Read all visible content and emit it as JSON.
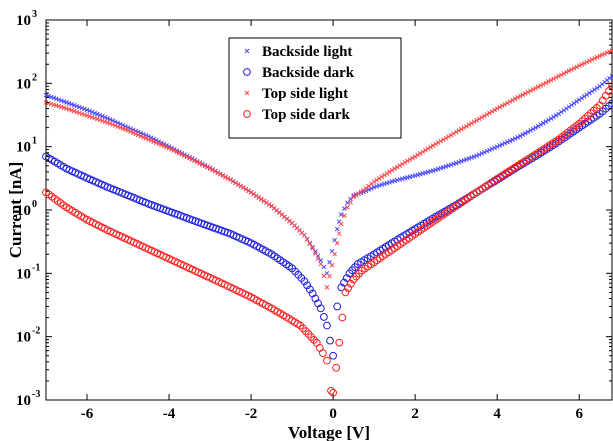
{
  "chart_data": {
    "type": "scatter",
    "title": "",
    "xlabel": "Voltage [V]",
    "ylabel": "Current [nA]",
    "xlim": [
      -7,
      6.8
    ],
    "ylim_log10": [
      -3,
      3
    ],
    "yscale": "log",
    "grid": false,
    "legend_position": "top-center",
    "x_ticks": [
      "-6",
      "-4",
      "-2",
      "0",
      "2",
      "4",
      "6"
    ],
    "y_ticks": [
      {
        "base": "10",
        "exp": "-3"
      },
      {
        "base": "10",
        "exp": "-2"
      },
      {
        "base": "10",
        "exp": "-1"
      },
      {
        "base": "10",
        "exp": "0"
      },
      {
        "base": "10",
        "exp": "1"
      },
      {
        "base": "10",
        "exp": "2"
      },
      {
        "base": "10",
        "exp": "3"
      }
    ],
    "series": [
      {
        "name": "Backside light",
        "marker": "x",
        "color": "#4a4aff",
        "x": [
          -7.0,
          -6.5,
          -6.0,
          -5.5,
          -5.0,
          -4.5,
          -4.0,
          -3.5,
          -3.0,
          -2.5,
          -2.0,
          -1.5,
          -1.0,
          -0.7,
          -0.5,
          -0.3,
          -0.15,
          0.1,
          0.2,
          0.35,
          0.5,
          0.8,
          1.0,
          1.5,
          2.0,
          2.5,
          3.0,
          3.5,
          4.0,
          4.5,
          5.0,
          5.5,
          6.0,
          6.5,
          6.8
        ],
        "y": [
          65,
          50,
          38,
          28,
          20,
          14.5,
          10,
          6.8,
          4.6,
          3.0,
          1.9,
          1.15,
          0.62,
          0.4,
          0.26,
          0.16,
          0.1,
          0.5,
          0.85,
          1.3,
          1.7,
          2.0,
          2.3,
          2.9,
          3.5,
          4.3,
          5.5,
          7.2,
          10,
          14,
          21,
          33,
          55,
          90,
          130
        ]
      },
      {
        "name": "Backside dark",
        "marker": "circle",
        "color": "#1f1fe0",
        "x": [
          -7.0,
          -6.5,
          -6.0,
          -5.5,
          -5.0,
          -4.5,
          -4.0,
          -3.5,
          -3.0,
          -2.5,
          -2.0,
          -1.5,
          -1.0,
          -0.7,
          -0.5,
          -0.3,
          -0.15,
          0.0,
          0.1,
          0.2,
          0.4,
          0.6,
          1.0,
          1.5,
          2.0,
          2.5,
          3.0,
          3.5,
          4.0,
          4.5,
          5.0,
          5.5,
          6.0,
          6.5,
          6.8
        ],
        "y": [
          7.0,
          4.5,
          3.2,
          2.3,
          1.7,
          1.25,
          0.95,
          0.72,
          0.55,
          0.42,
          0.3,
          0.2,
          0.12,
          0.075,
          0.048,
          0.028,
          0.015,
          0.005,
          0.03,
          0.06,
          0.1,
          0.14,
          0.2,
          0.32,
          0.5,
          0.78,
          1.2,
          1.9,
          3.0,
          4.8,
          7.5,
          12,
          20,
          33,
          48
        ]
      },
      {
        "name": "Top side light",
        "marker": "x",
        "color": "#ff4a4a",
        "x": [
          -7.0,
          -6.5,
          -6.0,
          -5.5,
          -5.0,
          -4.5,
          -4.0,
          -3.5,
          -3.0,
          -2.5,
          -2.0,
          -1.5,
          -1.0,
          -0.7,
          -0.5,
          -0.3,
          -0.15,
          0.1,
          0.2,
          0.35,
          0.5,
          0.8,
          1.0,
          1.5,
          2.0,
          2.5,
          3.0,
          3.5,
          4.0,
          4.5,
          5.0,
          5.5,
          6.0,
          6.5,
          6.8
        ],
        "y": [
          50,
          40,
          31,
          24,
          18,
          13,
          9.5,
          6.6,
          4.5,
          3.0,
          1.9,
          1.15,
          0.62,
          0.4,
          0.25,
          0.14,
          0.06,
          0.3,
          0.6,
          1.1,
          1.6,
          2.2,
          2.8,
          4.5,
          7.0,
          11,
          17,
          26,
          40,
          60,
          88,
          130,
          190,
          270,
          330
        ]
      },
      {
        "name": "Top side dark",
        "marker": "circle",
        "color": "#ff2020",
        "x": [
          -7.0,
          -6.5,
          -6.0,
          -5.5,
          -5.0,
          -4.5,
          -4.0,
          -3.5,
          -3.0,
          -2.5,
          -2.0,
          -1.5,
          -1.0,
          -0.8,
          -0.6,
          -0.4,
          -0.25,
          -0.15,
          -0.05,
          0.0,
          0.3,
          0.5,
          0.7,
          1.0,
          1.5,
          2.0,
          2.5,
          3.0,
          3.5,
          4.0,
          4.5,
          5.0,
          5.5,
          6.0,
          6.5,
          6.8
        ],
        "y": [
          1.9,
          1.1,
          0.7,
          0.48,
          0.34,
          0.24,
          0.17,
          0.12,
          0.085,
          0.06,
          0.042,
          0.028,
          0.018,
          0.015,
          0.011,
          0.008,
          0.0055,
          0.0042,
          0.0014,
          0.0013,
          0.05,
          0.08,
          0.11,
          0.15,
          0.25,
          0.42,
          0.7,
          1.15,
          1.9,
          3.1,
          5.0,
          8.0,
          13,
          23,
          45,
          90
        ]
      }
    ]
  }
}
